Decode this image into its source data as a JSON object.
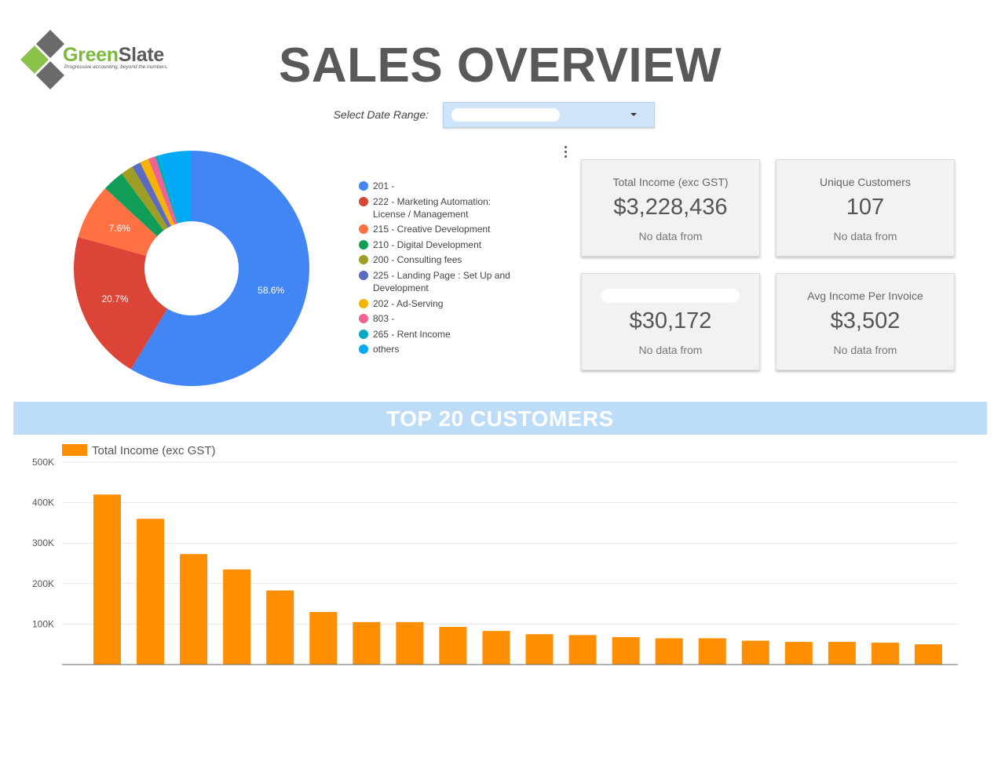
{
  "logo": {
    "name_green": "Green",
    "name_slate": "Slate",
    "tagline": "Progressive accounting, beyond the numbers."
  },
  "title": "SALES OVERVIEW",
  "date_filter": {
    "label": "Select Date Range:",
    "value": ""
  },
  "colors": {
    "accent_blue": "#4285f4",
    "bar_orange": "#ff8f00",
    "banner_blue": "#bcdcf8",
    "title_gray": "#595959"
  },
  "donut": {
    "slices": [
      {
        "label": "201 -",
        "value": 58.6,
        "color": "#4285f4",
        "display": "58.6%"
      },
      {
        "label": "222 - Marketing Automation: License / Management",
        "value": 20.7,
        "color": "#db4437",
        "display": "20.7%"
      },
      {
        "label": "215 - Creative Development",
        "value": 7.6,
        "color": "#ff7043",
        "display": "7.6%"
      },
      {
        "label": "210 - Digital Development",
        "value": 3.0,
        "color": "#0f9d58",
        "display": ""
      },
      {
        "label": "200 - Consulting fees",
        "value": 1.7,
        "color": "#9e9d24",
        "display": ""
      },
      {
        "label": "225 - Landing Page : Set Up and Development",
        "value": 1.2,
        "color": "#5c6bc0",
        "display": ""
      },
      {
        "label": "202 - Ad-Serving",
        "value": 1.2,
        "color": "#f4b400",
        "display": ""
      },
      {
        "label": "803 -",
        "value": 1.0,
        "color": "#f06292",
        "display": ""
      },
      {
        "label": "265 - Rent Income",
        "value": 0.5,
        "color": "#00acc1",
        "display": ""
      },
      {
        "label": "others",
        "value": 4.5,
        "color": "#03a9f4",
        "display": ""
      }
    ]
  },
  "kpis": [
    {
      "label": "Total Income (exc GST)",
      "value": "$3,228,436",
      "sub": "No data from"
    },
    {
      "label": "Unique Customers",
      "value": "107",
      "sub": "No data from"
    },
    {
      "label": "",
      "value": "$30,172",
      "sub": "No data from"
    },
    {
      "label": "Avg Income Per Invoice",
      "value": "$3,502",
      "sub": "No data from"
    }
  ],
  "section_title": "TOP 20 CUSTOMERS",
  "chart_data": {
    "type": "bar",
    "series": [
      {
        "name": "Total Income (exc GST)",
        "values": [
          420000,
          360000,
          273000,
          235000,
          183000,
          130000,
          105000,
          105000,
          93000,
          83000,
          75000,
          73000,
          68000,
          65000,
          65000,
          59000,
          56000,
          56000,
          54000,
          50000
        ]
      }
    ],
    "ylim": [
      0,
      500000
    ],
    "ytick_values": [
      100000,
      200000,
      300000,
      400000,
      500000
    ],
    "ytick_labels": [
      "100K",
      "200K",
      "300K",
      "400K",
      "500K"
    ],
    "grid": true,
    "legend_position": "top-left",
    "color": "#ff8f00"
  }
}
